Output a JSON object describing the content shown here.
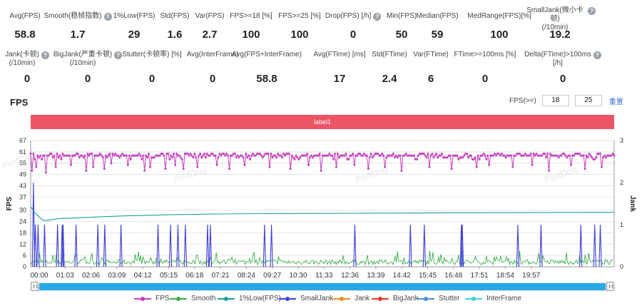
{
  "metrics": [
    {
      "label": "Avg(FPS)",
      "value": "58.8",
      "help": false
    },
    {
      "label": "Smooth(稳帧指数)",
      "value": "1.7",
      "help": true
    },
    {
      "label": "1%Low(FPS)",
      "value": "29",
      "help": false
    },
    {
      "label": "Std(FPS)",
      "value": "1.6",
      "help": false
    },
    {
      "label": "Var(FPS)",
      "value": "2.7",
      "help": false
    },
    {
      "label": "FPS>=18 [%]",
      "value": "100",
      "help": false
    },
    {
      "label": "FPS>=25 [%]",
      "value": "100",
      "help": false
    },
    {
      "label": "Drop(FPS) [/h]",
      "value": "0",
      "help": true
    },
    {
      "label": "Min(FPS)",
      "value": "50",
      "help": false
    },
    {
      "label": "Median(FPS)",
      "value": "59",
      "help": false
    },
    {
      "label": "MedRange(FPS)[%]",
      "value": "100",
      "help": false
    },
    {
      "label": "SmallJank(微小卡顿)\n(/10min)",
      "value": "19.2",
      "help": true
    },
    {
      "label": "Jank(卡顿)\n(/10min)",
      "value": "0",
      "help": true
    },
    {
      "label": "BigJank(严重卡顿)\n(/10min)",
      "value": "0",
      "help": true
    },
    {
      "label": "Stutter(卡顿率) [%]",
      "value": "0",
      "help": false
    },
    {
      "label": "Avg(InterFrame)",
      "value": "0",
      "help": false
    },
    {
      "label": "Avg(FPS+InterFrame)",
      "value": "58.8",
      "help": false
    },
    {
      "label": "Avg(FTime) [ms]",
      "value": "17",
      "help": false
    },
    {
      "label": "Std(FTime)",
      "value": "2.4",
      "help": false
    },
    {
      "label": "Var(FTime)",
      "value": "6",
      "help": false
    },
    {
      "label": "FTime>=100ms [%]",
      "value": "0",
      "help": false
    },
    {
      "label": "Delta(FTime)>100ms [/h]",
      "value": "0",
      "help": true
    }
  ],
  "section_title": "FPS",
  "fps_filter": {
    "label": "FPS(>=)",
    "value1": "18",
    "value2": "25",
    "reset_label": "重置"
  },
  "label_bar": "label1",
  "watermark": "PerfDog",
  "colors": {
    "fps": "#c83fc0",
    "smooth": "#3cb04a",
    "low1": "#1aa09a",
    "smalljank": "#3d3fd6",
    "jank": "#f08a24",
    "bigjank": "#e8352b",
    "stutter": "#4a90e2",
    "interframe": "#3ed0e0"
  },
  "chart_data": {
    "type": "line",
    "title": "",
    "ylabel": "FPS",
    "y2label": "Jank",
    "ylim": [
      0,
      67
    ],
    "y2lim": [
      0,
      3
    ],
    "yticks": [
      0,
      6,
      12,
      18,
      24,
      30,
      37,
      43,
      49,
      55,
      61,
      67
    ],
    "y2ticks": [
      0,
      1,
      2,
      3
    ],
    "xticks": [
      "00:00",
      "01:03",
      "02:06",
      "03:09",
      "04:12",
      "05:15",
      "06:18",
      "07:21",
      "08:24",
      "09:27",
      "10:30",
      "11:33",
      "12:36",
      "13:39",
      "14:42",
      "15:45",
      "16:48",
      "17:51",
      "18:54",
      "19:57"
    ],
    "xrange_seconds": [
      0,
      1260
    ],
    "legend_position": "bottom",
    "grid": true,
    "series": [
      {
        "name": "FPS",
        "key": "fps",
        "typical_value": 59,
        "dips": [
          [
            3,
            51
          ],
          [
            12,
            53
          ],
          [
            32,
            50
          ],
          [
            55,
            53
          ],
          [
            88,
            54
          ],
          [
            120,
            51
          ],
          [
            135,
            53
          ],
          [
            158,
            52
          ],
          [
            175,
            55
          ],
          [
            210,
            54
          ],
          [
            246,
            51
          ],
          [
            258,
            53
          ],
          [
            292,
            52
          ],
          [
            312,
            54
          ],
          [
            330,
            52
          ],
          [
            360,
            53
          ],
          [
            402,
            54
          ],
          [
            430,
            52
          ],
          [
            462,
            54
          ],
          [
            515,
            53
          ],
          [
            560,
            52
          ],
          [
            600,
            54
          ],
          [
            628,
            51
          ],
          [
            660,
            53
          ],
          [
            700,
            54
          ],
          [
            730,
            52
          ],
          [
            765,
            53
          ],
          [
            800,
            51
          ],
          [
            860,
            53
          ],
          [
            910,
            52
          ],
          [
            962,
            53
          ],
          [
            990,
            54
          ],
          [
            1040,
            53
          ],
          [
            1082,
            54
          ],
          [
            1120,
            51
          ],
          [
            1168,
            54
          ],
          [
            1198,
            52
          ],
          [
            1232,
            53
          ]
        ]
      },
      {
        "name": "Smooth",
        "key": "smooth",
        "typical_value": 1.7
      },
      {
        "name": "1%Low(FPS)",
        "key": "low1",
        "points": [
          [
            0,
            32
          ],
          [
            8,
            29
          ],
          [
            16,
            27
          ],
          [
            24,
            25
          ],
          [
            32,
            24.5
          ],
          [
            60,
            25.5
          ],
          [
            120,
            26.2
          ],
          [
            200,
            27
          ],
          [
            300,
            27.6
          ],
          [
            400,
            28
          ],
          [
            500,
            28.2
          ],
          [
            600,
            28.3
          ],
          [
            700,
            28.4
          ],
          [
            800,
            28.5
          ],
          [
            900,
            28.6
          ],
          [
            1000,
            28.7
          ],
          [
            1100,
            28.8
          ],
          [
            1260,
            28.9
          ]
        ]
      },
      {
        "name": "SmallJank",
        "key": "smalljank",
        "spikes": [
          [
            6,
            2.0
          ],
          [
            10,
            1
          ],
          [
            16,
            1
          ],
          [
            30,
            1
          ],
          [
            58,
            1
          ],
          [
            68,
            1
          ],
          [
            70,
            1
          ],
          [
            98,
            1
          ],
          [
            145,
            1
          ],
          [
            160,
            1
          ],
          [
            195,
            1
          ],
          [
            275,
            1
          ],
          [
            302,
            1
          ],
          [
            318,
            1
          ],
          [
            334,
            1
          ],
          [
            382,
            1
          ],
          [
            388,
            1
          ],
          [
            505,
            1
          ],
          [
            520,
            1
          ],
          [
            700,
            1
          ],
          [
            820,
            1
          ],
          [
            850,
            1
          ],
          [
            930,
            1
          ],
          [
            932,
            1
          ],
          [
            1052,
            1
          ],
          [
            1102,
            1
          ],
          [
            1188,
            1
          ],
          [
            1218,
            1
          ],
          [
            1230,
            1
          ]
        ]
      },
      {
        "name": "Jank",
        "key": "jank"
      },
      {
        "name": "BigJank",
        "key": "bigjank"
      },
      {
        "name": "Stutter",
        "key": "stutter"
      },
      {
        "name": "InterFrame",
        "key": "interframe"
      }
    ]
  }
}
